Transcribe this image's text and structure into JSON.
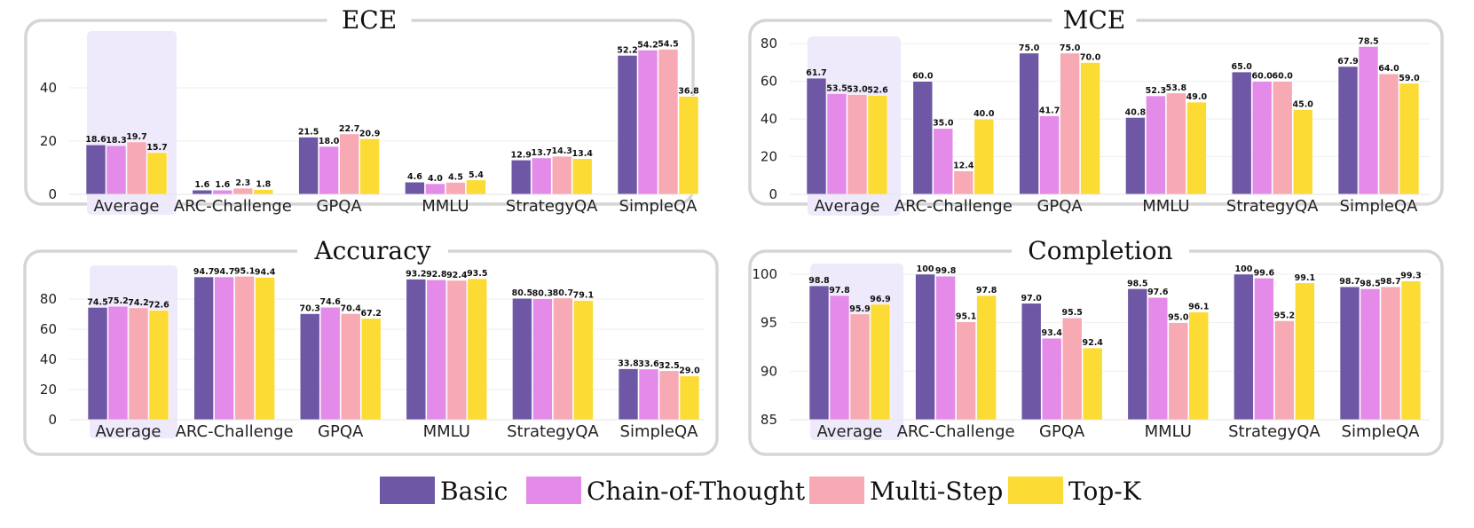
{
  "legend": [
    {
      "name": "Basic",
      "color": "#6e57a5"
    },
    {
      "name": "Chain-of-Thought",
      "color": "#e48ae8"
    },
    {
      "name": "Multi-Step",
      "color": "#f7a9b4"
    },
    {
      "name": "Top-K",
      "color": "#fbdb34"
    }
  ],
  "chart_data": [
    {
      "type": "bar",
      "title": "ECE",
      "categories": [
        "Average",
        "ARC-Challenge",
        "GPQA",
        "MMLU",
        "StrategyQA",
        "SimpleQA"
      ],
      "highlight": "Average",
      "ylim": [
        0,
        58
      ],
      "yticks": [
        0,
        20,
        40
      ],
      "series": [
        {
          "name": "Basic",
          "values": [
            18.6,
            1.6,
            21.5,
            4.6,
            12.9,
            52.2
          ],
          "labels": [
            "18.6",
            "1.6",
            "21.5",
            "4.6",
            "12.9",
            "52.2"
          ]
        },
        {
          "name": "Chain-of-Thought",
          "values": [
            18.3,
            1.6,
            18.0,
            4.0,
            13.7,
            54.2
          ],
          "labels": [
            "18.3",
            "1.6",
            "18.0",
            "4.0",
            "13.7",
            "54.2"
          ]
        },
        {
          "name": "Multi-Step",
          "values": [
            19.7,
            2.3,
            22.7,
            4.5,
            14.3,
            54.5
          ],
          "labels": [
            "19.7",
            "2.3",
            "22.7",
            "4.5",
            "14.3",
            "54.5"
          ]
        },
        {
          "name": "Top-K",
          "values": [
            15.7,
            1.8,
            20.9,
            5.4,
            13.4,
            36.8
          ],
          "labels": [
            "15.7",
            "1.8",
            "20.9",
            "5.4",
            "13.4",
            "36.8"
          ]
        }
      ]
    },
    {
      "type": "bar",
      "title": "MCE",
      "categories": [
        "Average",
        "ARC-Challenge",
        "GPQA",
        "MMLU",
        "StrategyQA",
        "SimpleQA"
      ],
      "highlight": "Average",
      "ylim": [
        0,
        82
      ],
      "yticks": [
        0,
        20,
        40,
        60,
        80
      ],
      "series": [
        {
          "name": "Basic",
          "values": [
            61.7,
            60.0,
            75.0,
            40.8,
            65.0,
            67.9
          ],
          "labels": [
            "61.7",
            "60.0",
            "75.0",
            "40.8",
            "65.0",
            "67.9"
          ]
        },
        {
          "name": "Chain-of-Thought",
          "values": [
            53.5,
            35.0,
            41.7,
            52.3,
            60.0,
            78.5
          ],
          "labels": [
            "53.5",
            "35.0",
            "41.7",
            "52.3",
            "60.0",
            "78.5"
          ]
        },
        {
          "name": "Multi-Step",
          "values": [
            53.0,
            12.4,
            75.0,
            53.8,
            60.0,
            64.0
          ],
          "labels": [
            "53.0",
            "12.4",
            "75.0",
            "53.8",
            "60.0",
            "64.0"
          ]
        },
        {
          "name": "Top-K",
          "values": [
            52.6,
            40.0,
            70.0,
            49.0,
            45.0,
            59.0
          ],
          "labels": [
            "52.6",
            "40.0",
            "70.0",
            "49.0",
            "45.0",
            "59.0"
          ]
        }
      ]
    },
    {
      "type": "bar",
      "title": "Accuracy",
      "categories": [
        "Average",
        "ARC-Challenge",
        "GPQA",
        "MMLU",
        "StrategyQA",
        "SimpleQA"
      ],
      "highlight": "Average",
      "ylim": [
        0,
        100
      ],
      "yticks": [
        0,
        20,
        40,
        60,
        80
      ],
      "series": [
        {
          "name": "Basic",
          "values": [
            74.5,
            94.7,
            70.3,
            93.2,
            80.5,
            33.8
          ],
          "labels": [
            "74.5",
            "94.7",
            "70.3",
            "93.2",
            "80.5",
            "33.8"
          ]
        },
        {
          "name": "Chain-of-Thought",
          "values": [
            75.2,
            94.7,
            74.6,
            92.8,
            80.3,
            33.6
          ],
          "labels": [
            "75.2",
            "94.7",
            "74.6",
            "92.8",
            "80.3",
            "33.6"
          ]
        },
        {
          "name": "Multi-Step",
          "values": [
            74.2,
            95.1,
            70.4,
            92.4,
            80.7,
            32.5
          ],
          "labels": [
            "74.2",
            "95.1",
            "70.4",
            "92.4",
            "80.7",
            "32.5"
          ]
        },
        {
          "name": "Top-K",
          "values": [
            72.6,
            94.4,
            67.2,
            93.5,
            79.1,
            29.0
          ],
          "labels": [
            "72.6",
            "94.4",
            "67.2",
            "93.5",
            "79.1",
            "29.0"
          ]
        }
      ]
    },
    {
      "type": "bar",
      "title": "Completion",
      "categories": [
        "Average",
        "ARC-Challenge",
        "GPQA",
        "MMLU",
        "StrategyQA",
        "SimpleQA"
      ],
      "highlight": "Average",
      "ylim": [
        85,
        101
      ],
      "yticks": [
        85,
        90,
        95,
        100
      ],
      "series": [
        {
          "name": "Basic",
          "values": [
            98.8,
            100,
            97.0,
            98.5,
            100,
            98.7
          ],
          "labels": [
            "98.8",
            "100",
            "97.0",
            "98.5",
            "100",
            "98.7"
          ]
        },
        {
          "name": "Chain-of-Thought",
          "values": [
            97.8,
            99.8,
            93.4,
            97.6,
            99.6,
            98.5
          ],
          "labels": [
            "97.8",
            "99.8",
            "93.4",
            "97.6",
            "99.6",
            "98.5"
          ]
        },
        {
          "name": "Multi-Step",
          "values": [
            95.9,
            95.1,
            95.5,
            95.0,
            95.2,
            98.7
          ],
          "labels": [
            "95.9",
            "95.1",
            "95.5",
            "95.0",
            "95.2",
            "98.7"
          ]
        },
        {
          "name": "Top-K",
          "values": [
            96.9,
            97.8,
            92.4,
            96.1,
            99.1,
            99.3
          ],
          "labels": [
            "96.9",
            "97.8",
            "92.4",
            "96.1",
            "99.1",
            "99.3"
          ]
        }
      ]
    }
  ]
}
